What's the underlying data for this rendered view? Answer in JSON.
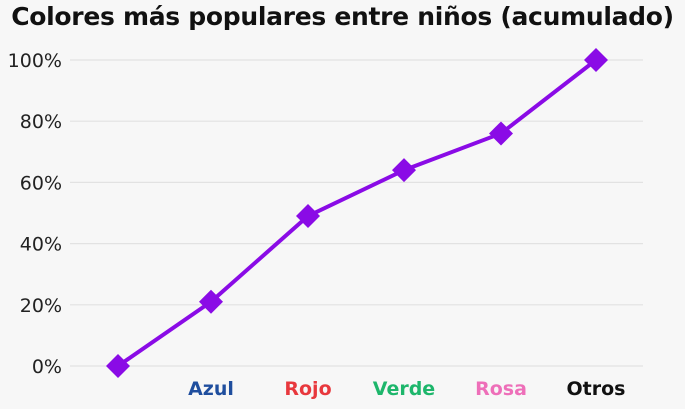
{
  "chart_data": {
    "type": "line",
    "title": "Colores más populares entre niños (acumulado)",
    "xlabel": "",
    "ylabel": "",
    "categories": [
      "",
      "Azul",
      "Rojo",
      "Verde",
      "Rosa",
      "Otros"
    ],
    "category_colors": [
      "#000000",
      "#1f4e9e",
      "#e8383d",
      "#1db66b",
      "#ee6fb9",
      "#111111"
    ],
    "series": [
      {
        "name": "Acumulado",
        "color": "#8a0be6",
        "marker": "diamond",
        "values": [
          0,
          21,
          49,
          64,
          76,
          100
        ]
      }
    ],
    "y_ticks": [
      "0%",
      "20%",
      "40%",
      "60%",
      "80%",
      "100%"
    ],
    "ylim": [
      0,
      100
    ],
    "grid": true,
    "legend": "none"
  }
}
